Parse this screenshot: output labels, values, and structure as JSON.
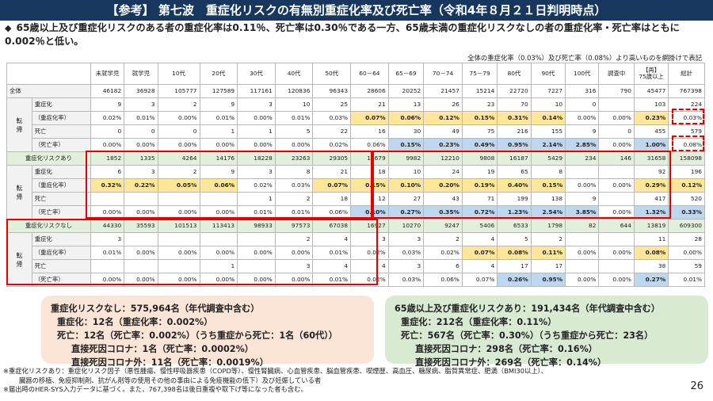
{
  "title": "【参考】 第七波　重症化リスクの有無別重症化率及び死亡率（令和4年８月２１日判明時点）",
  "lead": "65歳以上及び重症化リスクのある者の重症化率は0.11％、死亡率は0.30％である一方、65歳未満の重症化リスクなしの者の重症化率・死亡率はともに0.002％と低い。",
  "lead_marker": "◆",
  "table_note": "全体の重症化率（0.03%）及び死亡率（0.08%）より高いものを網掛けで表記",
  "columns": [
    "未就学児",
    "就学児",
    "10代",
    "20代",
    "30代",
    "40代",
    "50代",
    "60－64",
    "65－69",
    "70－74",
    "75－79",
    "80代",
    "90代",
    "100代",
    "調査中",
    "【再】75歳以上",
    "総計"
  ],
  "group_label": [
    "転",
    "帰"
  ],
  "rows": [
    {
      "label": "全体",
      "type": "total",
      "cells": [
        "46182",
        "36928",
        "105777",
        "127589",
        "117161",
        "120836",
        "96343",
        "28606",
        "20252",
        "21457",
        "15214",
        "22720",
        "7227",
        "316",
        "790",
        "45477",
        "767398"
      ]
    },
    {
      "label": "重症化",
      "type": "sub",
      "cells": [
        "9",
        "3",
        "2",
        "9",
        "3",
        "10",
        "25",
        "21",
        "13",
        "26",
        "23",
        "70",
        "10",
        "0",
        "",
        "103",
        "224"
      ]
    },
    {
      "label": "（重症化率）",
      "type": "sub",
      "cells": [
        "0.02%",
        "0.01%",
        "0.00%",
        "0.01%",
        "0.00%",
        "0.01%",
        "0.03%",
        "0.07%",
        "0.06%",
        "0.12%",
        "0.15%",
        "0.31%",
        "0.14%",
        "0.00%",
        "0.00%",
        "0.23%",
        "0.03%"
      ]
    },
    {
      "label": "死亡",
      "type": "sub",
      "cells": [
        "0",
        "0",
        "0",
        "1",
        "1",
        "5",
        "22",
        "16",
        "30",
        "49",
        "75",
        "216",
        "155",
        "9",
        "0",
        "455",
        "579"
      ]
    },
    {
      "label": "（死亡率）",
      "type": "sub",
      "cells": [
        "0.00%",
        "0.00%",
        "0.00%",
        "0.00%",
        "0.00%",
        "0.00%",
        "0.02%",
        "0.06%",
        "0.15%",
        "0.23%",
        "0.49%",
        "0.95%",
        "2.14%",
        "2.85%",
        "0.00%",
        "1.00%",
        "0.08%"
      ]
    },
    {
      "label": "重症化リスクあり",
      "type": "band",
      "cells": [
        "1852",
        "1335",
        "4264",
        "14176",
        "18228",
        "23263",
        "29305",
        "11679",
        "9982",
        "12210",
        "9808",
        "16187",
        "5429",
        "234",
        "146",
        "31658",
        "158098"
      ]
    },
    {
      "label": "重症化",
      "type": "sub",
      "cells": [
        "6",
        "3",
        "2",
        "9",
        "3",
        "8",
        "21",
        "18",
        "10",
        "24",
        "19",
        "65",
        "8",
        "",
        "",
        "92",
        "196"
      ]
    },
    {
      "label": "（重症化率）",
      "type": "sub",
      "cells": [
        "0.32%",
        "0.22%",
        "0.05%",
        "0.06%",
        "0.02%",
        "0.03%",
        "0.07%",
        "0.15%",
        "0.10%",
        "0.20%",
        "0.19%",
        "0.40%",
        "0.15%",
        "0.00%",
        "0.00%",
        "0.29%",
        "0.12%"
      ]
    },
    {
      "label": "死亡",
      "type": "sub",
      "cells": [
        "",
        "",
        "",
        "",
        "1",
        "2",
        "18",
        "12",
        "27",
        "43",
        "71",
        "199",
        "138",
        "9",
        "",
        "417",
        "520"
      ]
    },
    {
      "label": "（死亡率）",
      "type": "sub",
      "cells": [
        "0.00%",
        "0.00%",
        "0.00%",
        "0.00%",
        "0.01%",
        "0.01%",
        "0.06%",
        "0.10%",
        "0.27%",
        "0.35%",
        "0.72%",
        "1.23%",
        "2.54%",
        "3.85%",
        "0.00%",
        "1.32%",
        "0.33%"
      ]
    },
    {
      "label": "重症化リスクなし",
      "type": "band",
      "cells": [
        "44330",
        "35593",
        "101513",
        "113413",
        "98933",
        "97573",
        "67038",
        "16927",
        "10270",
        "9247",
        "5406",
        "6533",
        "1798",
        "82",
        "644",
        "13819",
        "609300"
      ]
    },
    {
      "label": "重症化",
      "type": "sub",
      "cells": [
        "3",
        "",
        "",
        "",
        "",
        "2",
        "4",
        "3",
        "3",
        "2",
        "4",
        "5",
        "2",
        "",
        "",
        "11",
        "28"
      ]
    },
    {
      "label": "（重症化率）",
      "type": "sub",
      "cells": [
        "0.01%",
        "0.00%",
        "0.00%",
        "0.00%",
        "0.00%",
        "0.00%",
        "0.01%",
        "0.02%",
        "0.03%",
        "0.02%",
        "0.07%",
        "0.08%",
        "0.11%",
        "0.00%",
        "0.00%",
        "0.08%",
        "0.00%"
      ]
    },
    {
      "label": "死亡",
      "type": "sub",
      "cells": [
        "",
        "",
        "",
        "1",
        "",
        "3",
        "4",
        "4",
        "3",
        "6",
        "4",
        "17",
        "17",
        "",
        "",
        "38",
        "59"
      ]
    },
    {
      "label": "（死亡率）",
      "type": "sub",
      "cells": [
        "0.00%",
        "0.00%",
        "0.00%",
        "0.00%",
        "0.00%",
        "0.00%",
        "0.01%",
        "0.02%",
        "0.03%",
        "0.06%",
        "0.07%",
        "0.26%",
        "0.95%",
        "0.00%",
        "0.00%",
        "0.27%",
        "0.01%"
      ]
    }
  ],
  "highlight_colors": {
    "yellow": "#ffe699",
    "blue": "#bdd7ee",
    "band": "#e2efda",
    "red": "#e00000"
  },
  "callout_left": {
    "line1": "重症化リスクなし：575,964名（年代調査中含む）",
    "line2": "重症化：12名（重症化率：0.002%）",
    "line3": "死亡：12名（死亡率：0.002%）（うち重症から死亡：1名（60代））",
    "line4": "直接死因コロナ：1名（死亡率：0.0002%）",
    "line5": "直接死因コロナ外：11名（死亡率：0.0019%）"
  },
  "callout_right": {
    "line1": "65歳以上及び重症化リスクあり：191,434名（年代調査中含む）",
    "line2": "重症化：212名（重症化率：0.11%）",
    "line3": "死亡：567名（死亡率：0.30%）（うち重症から死亡：23名）",
    "line4": "直接死因コロナ：298名（死亡率：0.16%）",
    "line5": "直接死因コロナ外：269名（死亡率：0.14%）"
  },
  "footnote1": "※重症化リスクあり：重症化リスク因子（悪性腫瘍、慢性呼吸器疾患（COPD等）、慢性腎臓病、心血管疾患、脳血管疾患、喫煙歴、高血圧、糖尿病、脂質異常症、肥満（BMI30以上）、",
  "footnote1b": "臓器の移植、免疫抑制剤、抗がん剤等の使用その他の事由による免疫機能の低下）及び妊娠している者",
  "footnote2": "※届出時のHER-SYS入力データに基づく。また、767,398名は後日重複や取下げ等になった者も含む。",
  "page_number": "26"
}
